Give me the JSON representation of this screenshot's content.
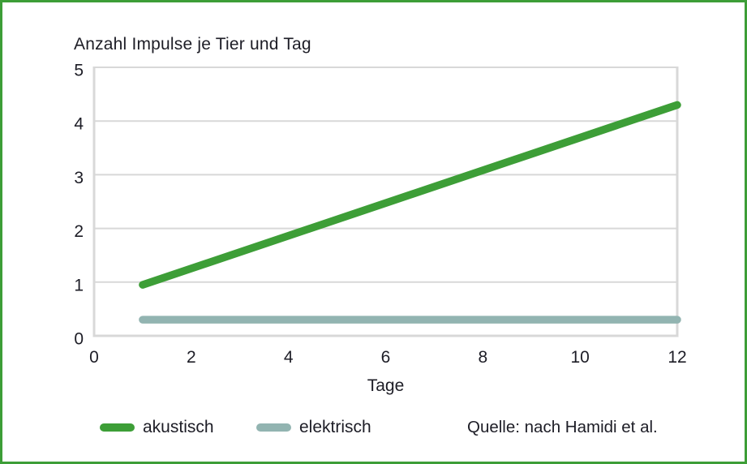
{
  "frame": {
    "border_color": "#3d9e37",
    "background": "#ffffff"
  },
  "colors": {
    "text": "#1d1d26",
    "grid": "#d8d8d8",
    "akustisch_green": "#3d9e37",
    "elektrisch_gray": "#92b4b1"
  },
  "source": "Quelle: nach Hamidi et al.",
  "chart_data": {
    "type": "line",
    "title": "Anzahl Impulse je Tier und Tag",
    "xlabel": "Tage",
    "ylabel": "",
    "xlim": [
      0,
      12
    ],
    "ylim": [
      0,
      5
    ],
    "xticks": [
      0,
      2,
      4,
      6,
      8,
      10,
      12
    ],
    "yticks": [
      0,
      1,
      2,
      3,
      4,
      5
    ],
    "grid": "horizontal",
    "legend_position": "bottom",
    "series": [
      {
        "name": "akustisch",
        "color": "#3d9e37",
        "points": [
          [
            1,
            0.95
          ],
          [
            12,
            4.3
          ]
        ]
      },
      {
        "name": "elektrisch",
        "color": "#92b4b1",
        "points": [
          [
            1,
            0.3
          ],
          [
            12,
            0.3
          ]
        ]
      }
    ]
  }
}
